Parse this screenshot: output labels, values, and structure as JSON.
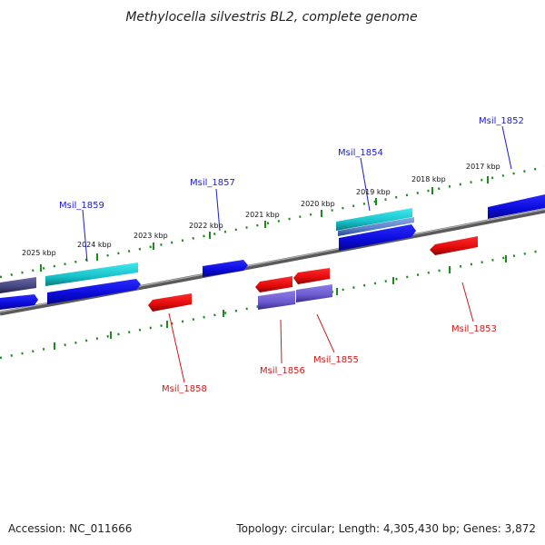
{
  "title": "Methylocella silvestris BL2, complete genome",
  "footer": {
    "accession": "Accession: NC_011666",
    "summary": "Topology: circular; Length: 4,305,430 bp; Genes: 3,872"
  },
  "colors": {
    "backbone": "#7a7a7a",
    "tick": "#1f8a1f",
    "forward_gene": "#1010e0",
    "reverse_gene": "#e81010",
    "cyan_gene": "#18c8d0",
    "purple_gene": "#6a5acd",
    "dark_gene": "#4a4a8a"
  },
  "scale_labels": [
    "2025 kbp",
    "2024 kbp",
    "2023 kbp",
    "2022 kbp",
    "2021 kbp",
    "2020 kbp",
    "2019 kbp",
    "2018 kbp",
    "2017 kbp"
  ],
  "gene_labels": {
    "msil_1852": "Msil_1852",
    "msil_1853": "Msil_1853",
    "msil_1854": "Msil_1854",
    "msil_1855": "Msil_1855",
    "msil_1856": "Msil_1856",
    "msil_1857": "Msil_1857",
    "msil_1858": "Msil_1858",
    "msil_1859": "Msil_1859"
  }
}
